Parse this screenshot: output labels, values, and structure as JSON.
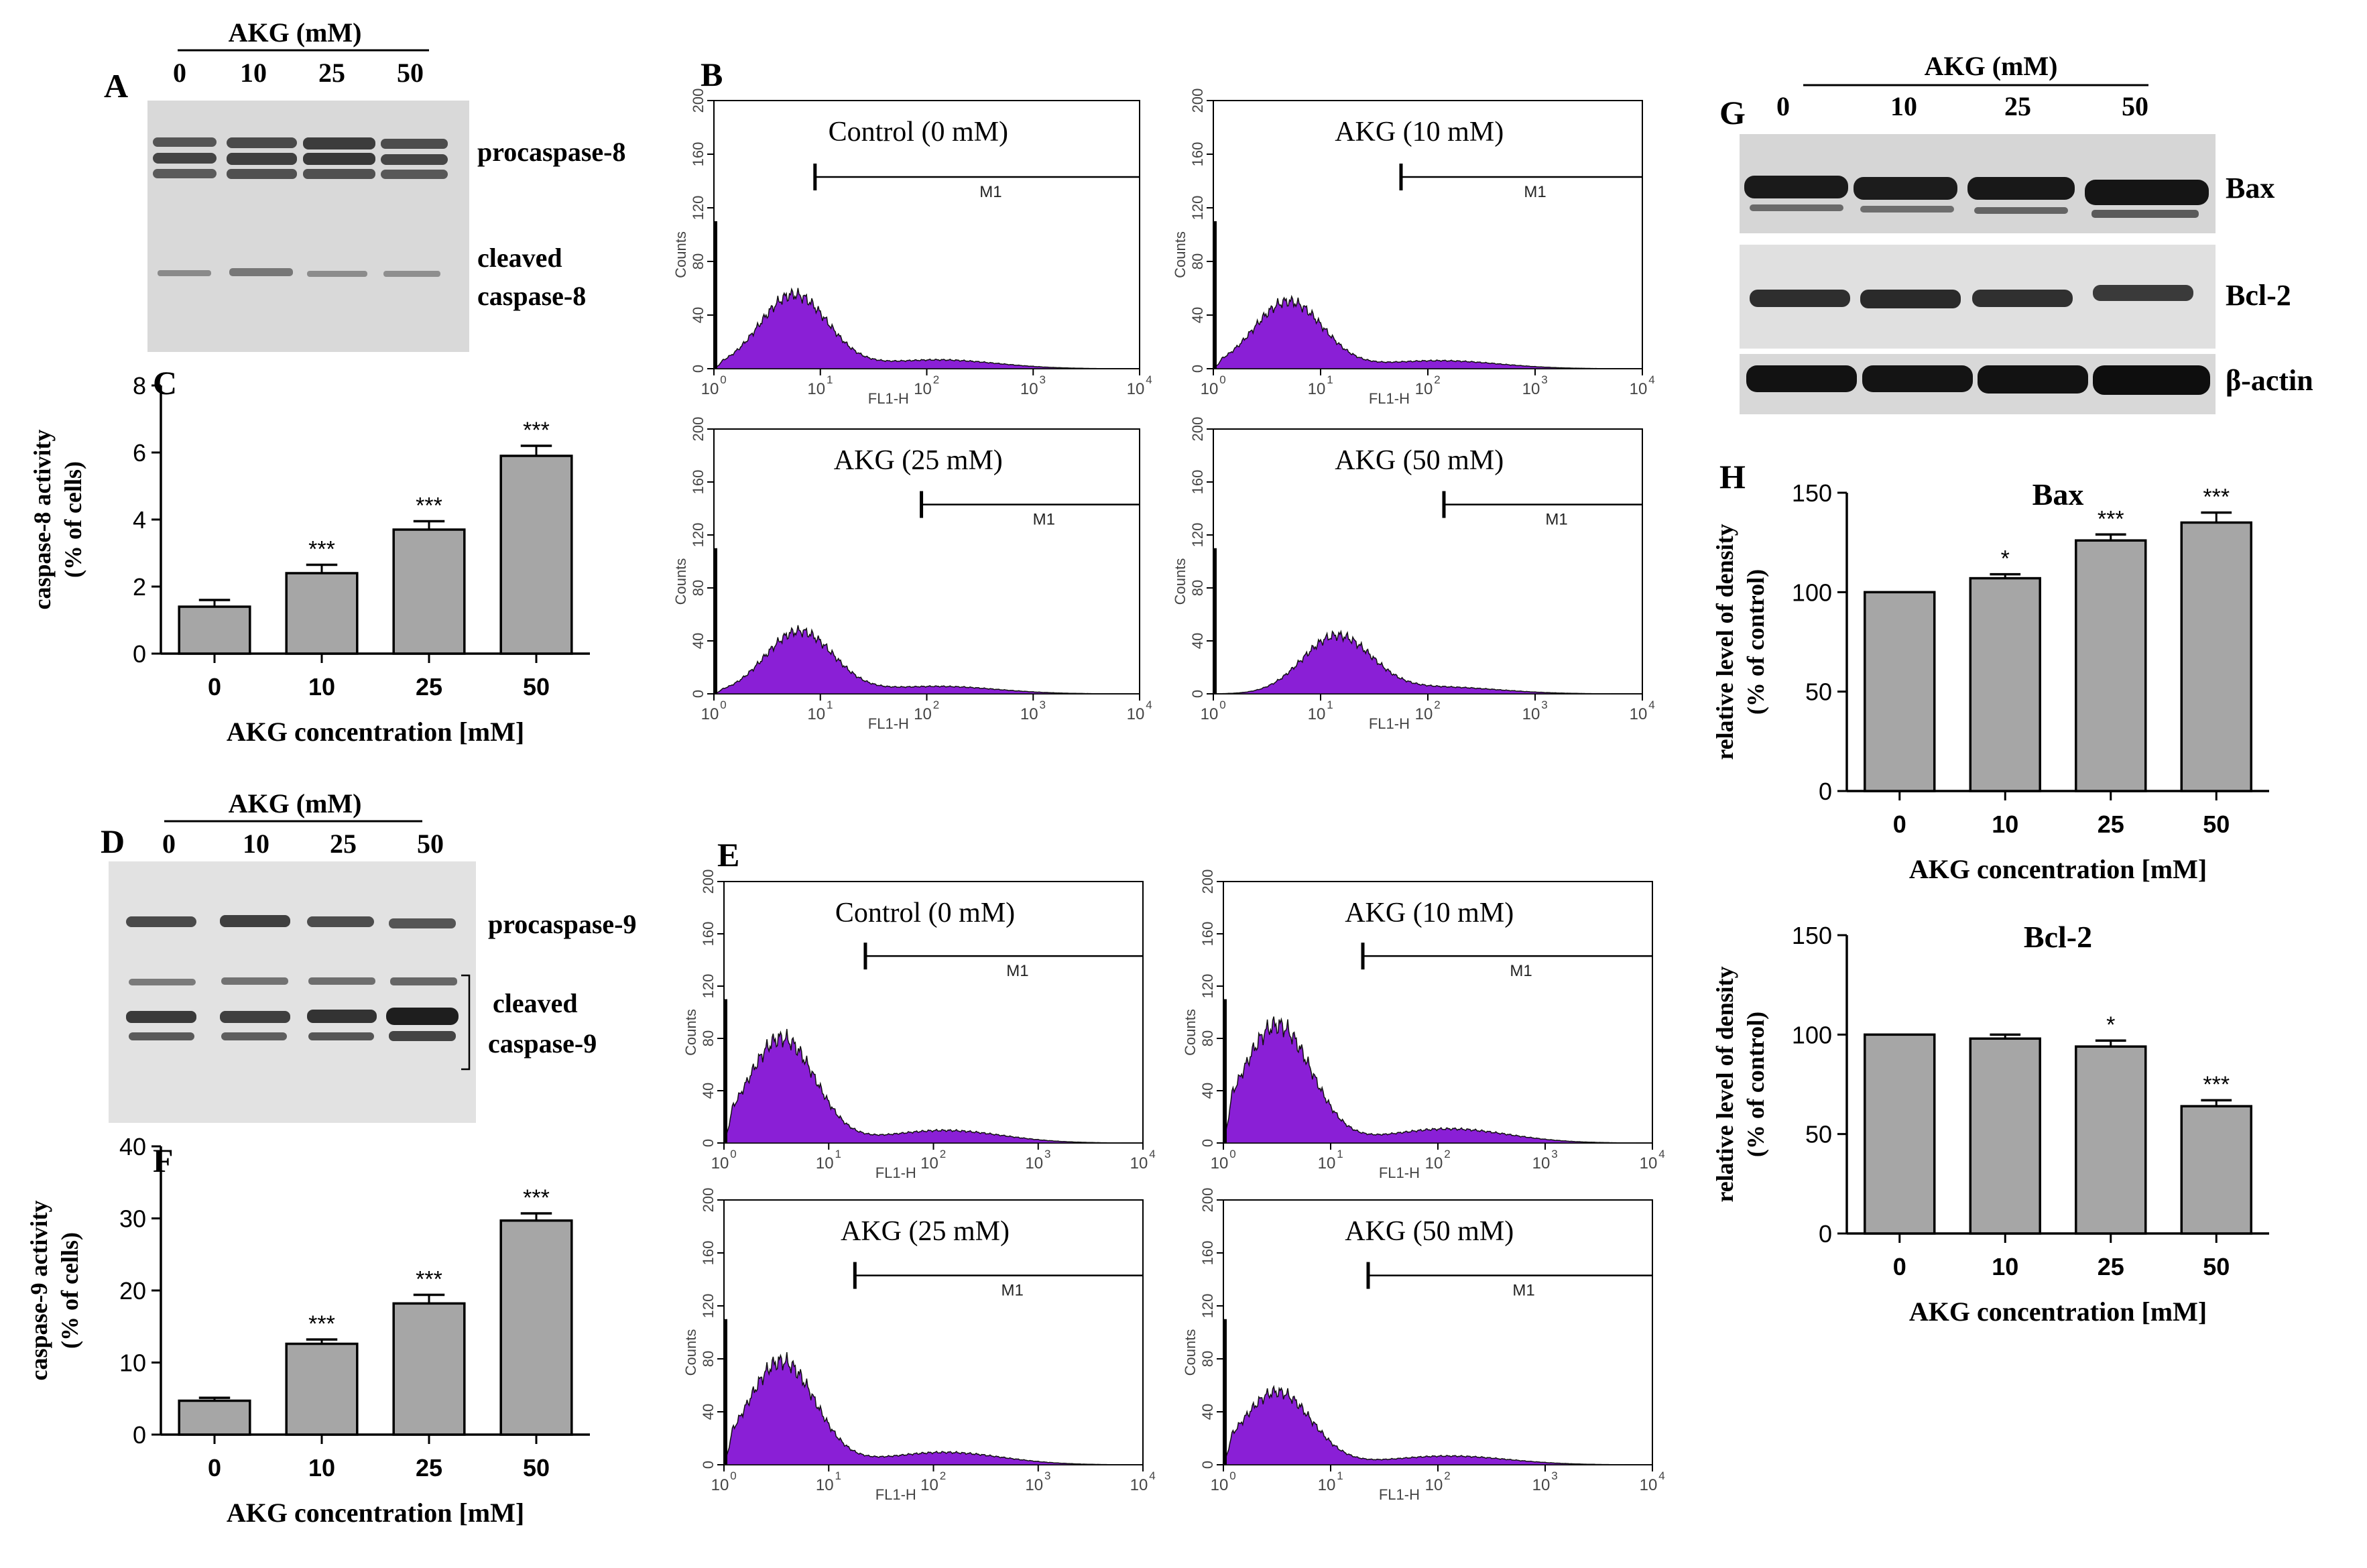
{
  "colors": {
    "bar_fill": "#a6a6a6",
    "histogram_fill": "#8a1fd6",
    "axis": "#000000",
    "blot_bg": "#dcdcdc"
  },
  "panel_letters": {
    "A": "A",
    "B": "B",
    "C": "C",
    "D": "D",
    "E": "E",
    "F": "F",
    "G": "G",
    "H": "H"
  },
  "blot_A": {
    "header": "AKG (mM)",
    "lanes": [
      "0",
      "10",
      "25",
      "50"
    ],
    "label_pro": "procaspase-8",
    "label_cleaved_1": "cleaved",
    "label_cleaved_2": "caspase-8"
  },
  "blot_D": {
    "header": "AKG (mM)",
    "lanes": [
      "0",
      "10",
      "25",
      "50"
    ],
    "label_pro": "procaspase-9",
    "label_cleaved_1": "cleaved",
    "label_cleaved_2": "caspase-9"
  },
  "blot_G": {
    "header": "AKG (mM)",
    "lanes": [
      "0",
      "10",
      "25",
      "50"
    ],
    "label_bax": "Bax",
    "label_bcl2": "Bcl-2",
    "label_actin": "β-actin"
  },
  "flow": {
    "y_axis_label": "Counts",
    "x_axis_label": "FL1-H",
    "gate_label": "M1",
    "y_ticks": [
      "0",
      "40",
      "80",
      "120",
      "160",
      "200"
    ],
    "x_ticks": [
      "10",
      "10",
      "10",
      "10",
      "10"
    ],
    "x_exps": [
      "0",
      "1",
      "2",
      "3",
      "4"
    ],
    "panels": [
      {
        "title": "Control (0 mM)",
        "gate_start_log": 0.95,
        "peak_log": 0.75,
        "peak_count": 55
      },
      {
        "title": "AKG (10 mM)",
        "gate_start_log": 1.75,
        "peak_log": 0.7,
        "peak_count": 50
      },
      {
        "title": "AKG (25 mM)",
        "gate_start_log": 1.95,
        "peak_log": 0.8,
        "peak_count": 47
      },
      {
        "title": "AKG (50 mM)",
        "gate_start_log": 2.15,
        "peak_log": 1.15,
        "peak_count": 43
      },
      {
        "title": "Control (0 mM)",
        "gate_start_log": 1.35,
        "peak_log": 0.55,
        "peak_count": 80
      },
      {
        "title": "AKG (10 mM)",
        "gate_start_log": 1.3,
        "peak_log": 0.5,
        "peak_count": 90
      },
      {
        "title": "AKG (25 mM)",
        "gate_start_log": 1.25,
        "peak_log": 0.55,
        "peak_count": 78
      },
      {
        "title": "AKG (50 mM)",
        "gate_start_log": 1.35,
        "peak_log": 0.5,
        "peak_count": 55
      }
    ]
  },
  "chart_data": [
    {
      "id": "C",
      "type": "bar",
      "categories": [
        "0",
        "10",
        "25",
        "50"
      ],
      "values": [
        1.4,
        2.4,
        3.7,
        5.9
      ],
      "errors": [
        0.2,
        0.25,
        0.25,
        0.3
      ],
      "significance": [
        "",
        "***",
        "***",
        "***"
      ],
      "title": "",
      "xlabel": "AKG concentration [mM]",
      "ylabel_1": "caspase-8 activity",
      "ylabel_2": "(% of cells)",
      "ylim": [
        0,
        8
      ],
      "yticks": [
        "0",
        "2",
        "4",
        "6",
        "8"
      ]
    },
    {
      "id": "F",
      "type": "bar",
      "categories": [
        "0",
        "10",
        "25",
        "50"
      ],
      "values": [
        4.7,
        12.6,
        18.2,
        29.7
      ],
      "errors": [
        0.4,
        0.6,
        1.2,
        1.0
      ],
      "significance": [
        "",
        "***",
        "***",
        "***"
      ],
      "title": "",
      "xlabel": "AKG concentration [mM]",
      "ylabel_1": "caspase-9 activity",
      "ylabel_2": "(% of cells)",
      "ylim": [
        0,
        40
      ],
      "yticks": [
        "0",
        "10",
        "20",
        "30",
        "40"
      ]
    },
    {
      "id": "H1",
      "type": "bar",
      "categories": [
        "0",
        "10",
        "25",
        "50"
      ],
      "values": [
        100,
        107,
        126,
        135
      ],
      "errors": [
        0,
        2,
        3,
        5
      ],
      "significance": [
        "",
        "*",
        "***",
        "***"
      ],
      "title": "Bax",
      "xlabel": "AKG concentration [mM]",
      "ylabel_1": "relative level of density",
      "ylabel_2": "(% of control)",
      "ylim": [
        0,
        150
      ],
      "yticks": [
        "0",
        "50",
        "100",
        "150"
      ]
    },
    {
      "id": "H2",
      "type": "bar",
      "categories": [
        "0",
        "10",
        "25",
        "50"
      ],
      "values": [
        100,
        98,
        94,
        64
      ],
      "errors": [
        0,
        2,
        3,
        3
      ],
      "significance": [
        "",
        "",
        "*",
        "***"
      ],
      "title": "Bcl-2",
      "xlabel": "AKG concentration [mM]",
      "ylabel_1": "relative level of density",
      "ylabel_2": "(% of control)",
      "ylim": [
        0,
        150
      ],
      "yticks": [
        "0",
        "50",
        "100",
        "150"
      ]
    }
  ]
}
